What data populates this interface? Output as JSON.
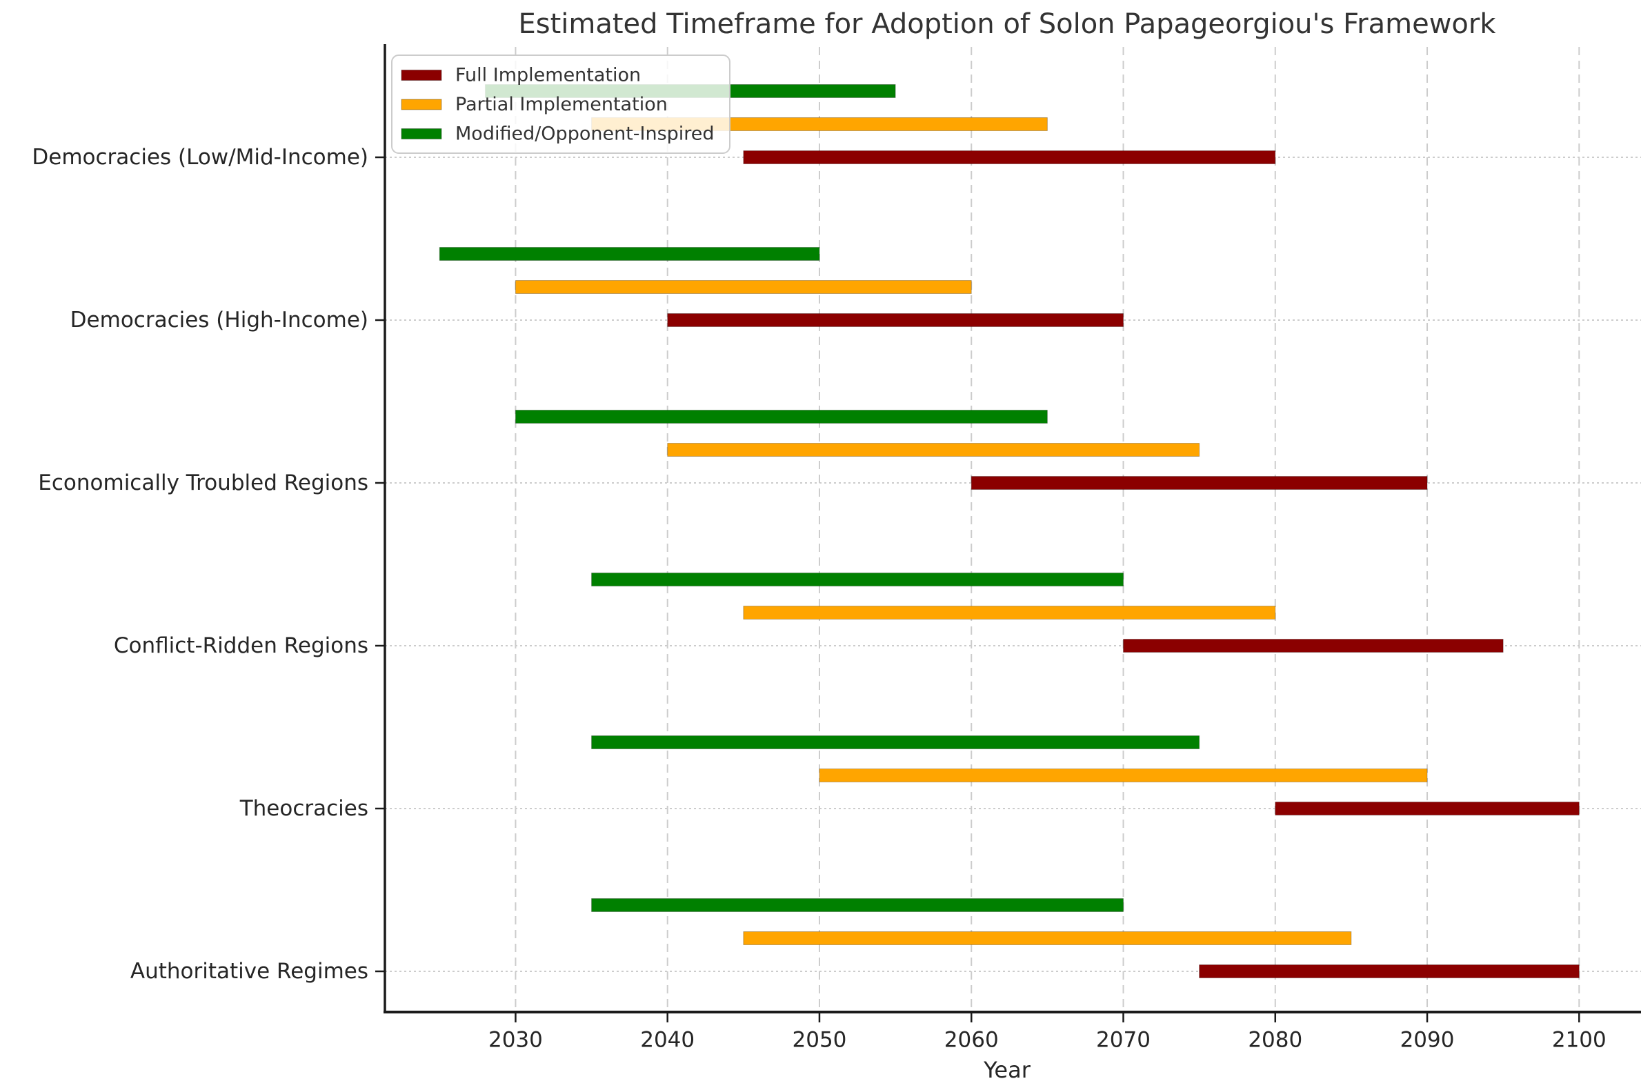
{
  "chart_data": {
    "type": "bar",
    "subtype": "horizontal-range-gantt",
    "title": "Estimated Timeframe for Adoption of Solon Papageorgiou's Framework",
    "xlabel": "Year",
    "ylabel": "",
    "xlim": [
      2021.4,
      2103.3
    ],
    "x_ticks": [
      2030,
      2040,
      2050,
      2060,
      2070,
      2080,
      2090,
      2100
    ],
    "grid": true,
    "legend_position": "upper left",
    "categories": [
      "Democracies (Low/Mid-Income)",
      "Democracies (High-Income)",
      "Economically Troubled Regions",
      "Conflict-Ridden Regions",
      "Theocracies",
      "Authoritative Regimes"
    ],
    "series": [
      {
        "name": "Full Implementation",
        "color": "#8B0000",
        "ranges": [
          [
            2045,
            2080
          ],
          [
            2040,
            2070
          ],
          [
            2060,
            2090
          ],
          [
            2070,
            2095
          ],
          [
            2080,
            2100
          ],
          [
            2075,
            2100
          ]
        ]
      },
      {
        "name": "Partial Implementation",
        "color": "#FFA500",
        "ranges": [
          [
            2035,
            2065
          ],
          [
            2030,
            2060
          ],
          [
            2040,
            2075
          ],
          [
            2045,
            2080
          ],
          [
            2050,
            2090
          ],
          [
            2045,
            2085
          ]
        ]
      },
      {
        "name": "Modified/Opponent-Inspired",
        "color": "#008000",
        "ranges": [
          [
            2028,
            2055
          ],
          [
            2025,
            2050
          ],
          [
            2030,
            2065
          ],
          [
            2035,
            2070
          ],
          [
            2035,
            2075
          ],
          [
            2035,
            2070
          ]
        ]
      }
    ],
    "colors": {
      "grid": "#cccccc",
      "spine": "#1a1a1a",
      "tick_text": "#262626",
      "title_text": "#333333",
      "legend_border": "#cccccc",
      "legend_text": "#333333"
    }
  }
}
